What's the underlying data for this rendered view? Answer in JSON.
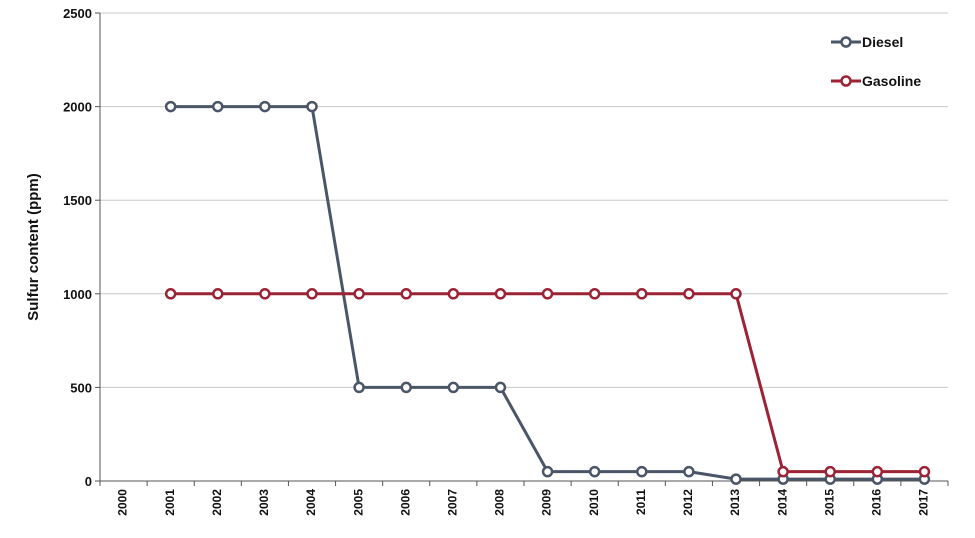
{
  "chart_data": {
    "type": "line",
    "title": "",
    "xlabel": "",
    "ylabel": "Sulfur content (ppm)",
    "categories": [
      "2000",
      "2001",
      "2002",
      "2003",
      "2004",
      "2005",
      "2006",
      "2007",
      "2008",
      "2009",
      "2010",
      "2011",
      "2012",
      "2013",
      "2014",
      "2015",
      "2016",
      "2017"
    ],
    "ylim": [
      0,
      2500
    ],
    "yticks": [
      0,
      500,
      1000,
      1500,
      2000,
      2500
    ],
    "grid": "horizontal",
    "legend_position": "top-right",
    "series": [
      {
        "name": "Diesel",
        "color": "#4a5568",
        "values": [
          null,
          2000,
          2000,
          2000,
          2000,
          500,
          500,
          500,
          500,
          50,
          50,
          50,
          50,
          10,
          10,
          10,
          10,
          10
        ]
      },
      {
        "name": "Gasoline",
        "color": "#9b2335",
        "values": [
          null,
          1000,
          1000,
          1000,
          1000,
          1000,
          1000,
          1000,
          1000,
          1000,
          1000,
          1000,
          1000,
          1000,
          50,
          50,
          50,
          50
        ]
      }
    ]
  }
}
